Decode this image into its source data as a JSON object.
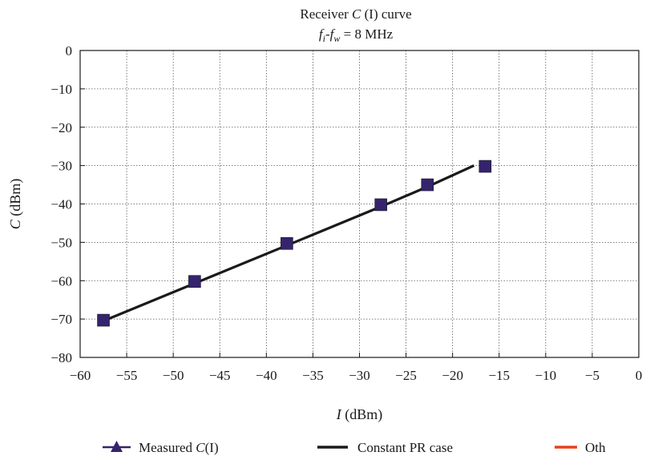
{
  "chart_data": {
    "type": "line",
    "title": "Receiver C (I) curve",
    "subtitle": "fi-fw = 8 MHz",
    "xlabel": "I (dBm)",
    "ylabel": "C (dBm)",
    "xlim": [
      -60,
      0
    ],
    "ylim": [
      -80,
      0
    ],
    "xticks": [
      -60,
      -55,
      -50,
      -45,
      -40,
      -35,
      -30,
      -25,
      -20,
      -15,
      -10,
      -5,
      0
    ],
    "yticks": [
      0,
      -10,
      -20,
      -30,
      -40,
      -50,
      -60,
      -70,
      -80
    ],
    "grid": true,
    "legend_position": "bottom",
    "series": [
      {
        "name": "Measured C(I)",
        "color": "#35236e",
        "marker": "square",
        "points": [
          [
            -57.5,
            -70.3
          ],
          [
            -47.7,
            -60.2
          ],
          [
            -37.8,
            -50.3
          ],
          [
            -27.7,
            -40.2
          ],
          [
            -22.7,
            -35.0
          ],
          [
            -16.5,
            -30.2
          ]
        ]
      },
      {
        "name": "Constant PR case",
        "color": "#1a1a1a",
        "points": [
          [
            -57.5,
            -70.5
          ],
          [
            -47.5,
            -60.5
          ],
          [
            -37.5,
            -50.5
          ],
          [
            -27.5,
            -40.5
          ],
          [
            -22.5,
            -35.3
          ],
          [
            -17.7,
            -30.0
          ]
        ]
      },
      {
        "name": "Oth",
        "color": "#e8411a",
        "points": []
      }
    ]
  }
}
